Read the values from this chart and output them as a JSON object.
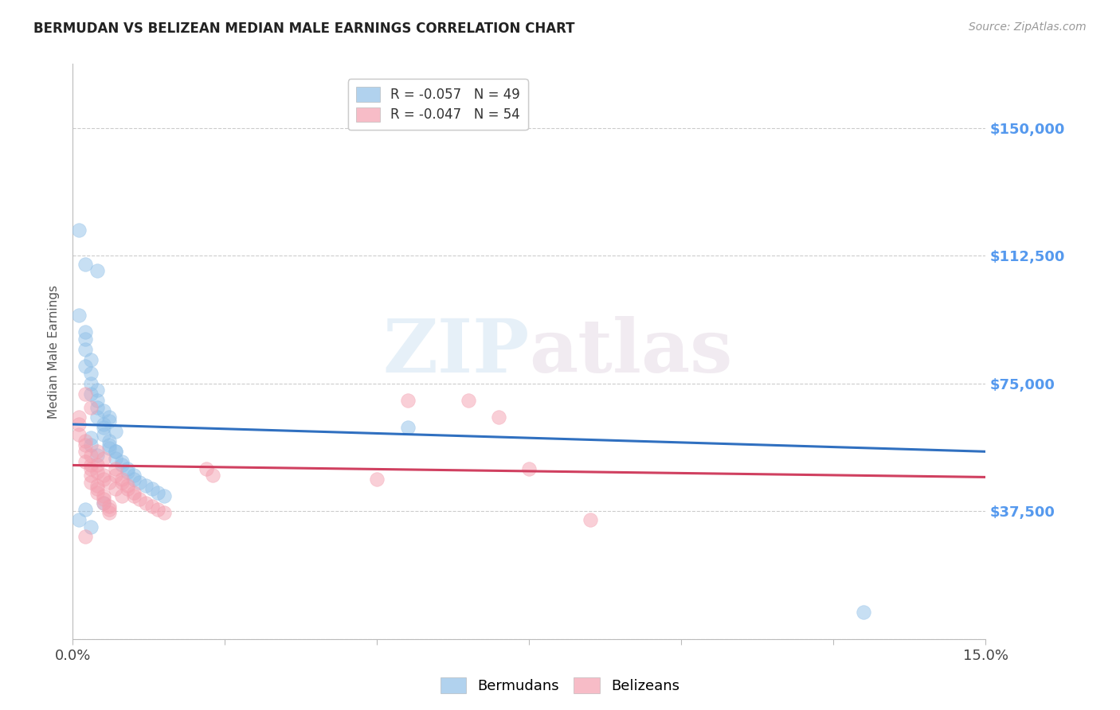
{
  "title": "BERMUDAN VS BELIZEAN MEDIAN MALE EARNINGS CORRELATION CHART",
  "source": "Source: ZipAtlas.com",
  "ylabel": "Median Male Earnings",
  "xlim": [
    0.0,
    0.15
  ],
  "ylim": [
    0,
    168750
  ],
  "yticks": [
    0,
    37500,
    75000,
    112500,
    150000
  ],
  "ytick_labels": [
    "",
    "$37,500",
    "$75,000",
    "$112,500",
    "$150,000"
  ],
  "xticks": [
    0.0,
    0.025,
    0.05,
    0.075,
    0.1,
    0.125,
    0.15
  ],
  "xtick_labels": [
    "0.0%",
    "",
    "",
    "",
    "",
    "",
    "15.0%"
  ],
  "blue_color": "#90c0e8",
  "pink_color": "#f4a0b0",
  "blue_line_color": "#3070c0",
  "pink_line_color": "#d04060",
  "right_axis_color": "#5599ee",
  "background_color": "#ffffff",
  "blue_scatter_x": [
    0.001,
    0.001,
    0.002,
    0.002,
    0.002,
    0.003,
    0.003,
    0.003,
    0.004,
    0.004,
    0.004,
    0.005,
    0.005,
    0.005,
    0.006,
    0.006,
    0.006,
    0.007,
    0.007,
    0.008,
    0.008,
    0.009,
    0.009,
    0.01,
    0.01,
    0.011,
    0.012,
    0.013,
    0.014,
    0.015,
    0.002,
    0.003,
    0.004,
    0.005,
    0.006,
    0.007,
    0.003,
    0.004,
    0.005,
    0.002,
    0.001,
    0.003,
    0.006,
    0.055,
    0.13,
    0.002,
    0.004,
    0.007,
    0.003
  ],
  "blue_scatter_y": [
    120000,
    95000,
    90000,
    85000,
    80000,
    78000,
    75000,
    72000,
    70000,
    68000,
    65000,
    63000,
    62000,
    60000,
    58000,
    57000,
    56000,
    55000,
    53000,
    52000,
    51000,
    50000,
    49000,
    48000,
    47000,
    46000,
    45000,
    44000,
    43000,
    42000,
    88000,
    82000,
    73000,
    67000,
    64000,
    61000,
    59000,
    54000,
    40000,
    38000,
    35000,
    33000,
    65000,
    62000,
    8000,
    110000,
    108000,
    55000,
    57000
  ],
  "pink_scatter_x": [
    0.001,
    0.001,
    0.002,
    0.002,
    0.002,
    0.003,
    0.003,
    0.003,
    0.004,
    0.004,
    0.004,
    0.005,
    0.005,
    0.005,
    0.006,
    0.006,
    0.006,
    0.007,
    0.007,
    0.008,
    0.008,
    0.009,
    0.009,
    0.01,
    0.01,
    0.011,
    0.012,
    0.013,
    0.014,
    0.015,
    0.002,
    0.003,
    0.004,
    0.005,
    0.003,
    0.004,
    0.005,
    0.022,
    0.023,
    0.05,
    0.055,
    0.065,
    0.07,
    0.075,
    0.085,
    0.001,
    0.002,
    0.003,
    0.004,
    0.005,
    0.006,
    0.007,
    0.008,
    0.002
  ],
  "pink_scatter_y": [
    65000,
    60000,
    58000,
    55000,
    52000,
    50000,
    48000,
    46000,
    45000,
    44000,
    43000,
    42000,
    41000,
    40000,
    39000,
    38000,
    37000,
    50000,
    48000,
    47000,
    46000,
    45000,
    44000,
    43000,
    42000,
    41000,
    40000,
    39000,
    38000,
    37000,
    72000,
    68000,
    55000,
    53000,
    51000,
    49000,
    47000,
    50000,
    48000,
    47000,
    70000,
    70000,
    65000,
    50000,
    35000,
    63000,
    57000,
    54000,
    51000,
    48000,
    46000,
    44000,
    42000,
    30000
  ],
  "blue_line_x0": 0.0,
  "blue_line_x1": 0.15,
  "blue_line_y0": 63000,
  "blue_line_y1": 55000,
  "pink_line_x0": 0.0,
  "pink_line_x1": 0.15,
  "pink_line_y0": 51000,
  "pink_line_y1": 47500
}
